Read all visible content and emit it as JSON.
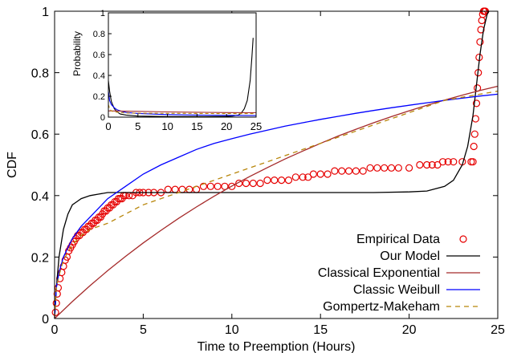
{
  "chart_data": [
    {
      "type": "line",
      "xlabel": "Time to Preemption (Hours)",
      "ylabel": "CDF",
      "xlim": [
        0,
        25
      ],
      "ylim": [
        0,
        1
      ],
      "xticks": [
        "0",
        "5",
        "10",
        "15",
        "20",
        "25"
      ],
      "yticks": [
        "0",
        "0.2",
        "0.4",
        "0.6",
        "0.8",
        "1"
      ],
      "legend_position": "bottom-right",
      "grid": false,
      "series": [
        {
          "name": "Empirical Data",
          "style": "scatter",
          "marker": "open-circle",
          "color": "#e60000",
          "x": [
            0.05,
            0.1,
            0.15,
            0.2,
            0.3,
            0.4,
            0.5,
            0.6,
            0.7,
            0.8,
            0.9,
            1.0,
            1.1,
            1.2,
            1.3,
            1.4,
            1.5,
            1.6,
            1.7,
            1.8,
            1.9,
            2.0,
            2.1,
            2.2,
            2.3,
            2.4,
            2.5,
            2.6,
            2.7,
            2.8,
            2.9,
            3.0,
            3.1,
            3.2,
            3.3,
            3.4,
            3.5,
            3.6,
            3.7,
            3.8,
            3.9,
            4.0,
            4.2,
            4.4,
            4.6,
            4.8,
            5.0,
            5.3,
            5.6,
            6.0,
            6.4,
            6.8,
            7.2,
            7.6,
            8.0,
            8.4,
            8.8,
            9.2,
            9.6,
            10.0,
            10.4,
            10.8,
            11.2,
            11.6,
            12.0,
            12.4,
            12.8,
            13.2,
            13.6,
            14.0,
            14.3,
            14.6,
            15.0,
            15.4,
            15.8,
            16.2,
            16.6,
            17.0,
            17.4,
            17.8,
            18.2,
            18.6,
            19.0,
            19.4,
            20.0,
            20.6,
            21.0,
            21.3,
            21.6,
            21.9,
            22.2,
            22.5,
            23.0,
            23.5,
            23.6,
            23.65,
            23.7,
            23.75,
            23.8,
            23.85,
            23.9,
            23.95,
            24.0,
            24.05,
            24.1,
            24.15,
            24.2,
            24.25,
            24.3
          ],
          "y": [
            0.02,
            0.05,
            0.08,
            0.1,
            0.13,
            0.15,
            0.17,
            0.19,
            0.2,
            0.22,
            0.23,
            0.24,
            0.25,
            0.26,
            0.27,
            0.27,
            0.28,
            0.28,
            0.29,
            0.29,
            0.3,
            0.3,
            0.31,
            0.31,
            0.32,
            0.32,
            0.33,
            0.33,
            0.34,
            0.35,
            0.35,
            0.36,
            0.36,
            0.37,
            0.37,
            0.38,
            0.38,
            0.39,
            0.39,
            0.39,
            0.4,
            0.4,
            0.4,
            0.4,
            0.41,
            0.41,
            0.41,
            0.41,
            0.41,
            0.41,
            0.42,
            0.42,
            0.42,
            0.42,
            0.42,
            0.43,
            0.43,
            0.43,
            0.43,
            0.43,
            0.44,
            0.44,
            0.44,
            0.44,
            0.45,
            0.45,
            0.45,
            0.45,
            0.46,
            0.46,
            0.46,
            0.47,
            0.47,
            0.47,
            0.48,
            0.48,
            0.48,
            0.48,
            0.48,
            0.49,
            0.49,
            0.49,
            0.49,
            0.49,
            0.49,
            0.5,
            0.5,
            0.5,
            0.5,
            0.51,
            0.51,
            0.51,
            0.51,
            0.51,
            0.51,
            0.56,
            0.6,
            0.65,
            0.7,
            0.75,
            0.8,
            0.85,
            0.9,
            0.94,
            0.97,
            0.99,
            1.0,
            1.0,
            1.0
          ]
        },
        {
          "name": "Our Model",
          "color": "#000000",
          "dash": "solid",
          "x": [
            0,
            0.1,
            0.25,
            0.5,
            0.75,
            1.0,
            1.25,
            1.5,
            2.0,
            2.5,
            3.0,
            3.5,
            4.0,
            5.0,
            6.0,
            8.0,
            10.0,
            12.0,
            15.0,
            18.0,
            20.0,
            21.0,
            22.0,
            22.5,
            23.0,
            23.3,
            23.6,
            23.8,
            24.0,
            24.2,
            24.4,
            24.5
          ],
          "y": [
            0,
            0.1,
            0.2,
            0.29,
            0.34,
            0.37,
            0.38,
            0.39,
            0.4,
            0.405,
            0.41,
            0.41,
            0.41,
            0.41,
            0.41,
            0.41,
            0.41,
            0.41,
            0.41,
            0.41,
            0.412,
            0.415,
            0.43,
            0.45,
            0.5,
            0.56,
            0.66,
            0.76,
            0.86,
            0.94,
            0.99,
            1.0
          ]
        },
        {
          "name": "Classical Exponential",
          "color": "#a52a2a",
          "dash": "solid",
          "x": [
            0,
            1,
            2,
            3,
            4,
            5,
            6,
            7,
            8,
            9,
            10,
            11,
            12,
            13,
            14,
            15,
            16,
            17,
            18,
            19,
            20,
            21,
            22,
            23,
            24,
            25
          ],
          "y": [
            0,
            0.055,
            0.107,
            0.156,
            0.202,
            0.246,
            0.287,
            0.326,
            0.363,
            0.398,
            0.431,
            0.462,
            0.491,
            0.519,
            0.545,
            0.57,
            0.594,
            0.616,
            0.637,
            0.657,
            0.676,
            0.694,
            0.711,
            0.727,
            0.742,
            0.756
          ]
        },
        {
          "name": "Classic Weibull",
          "color": "#0000ff",
          "dash": "solid",
          "x": [
            0,
            0.1,
            0.25,
            0.5,
            1,
            1.5,
            2,
            3,
            4,
            5,
            6,
            7,
            8,
            9,
            10,
            11,
            12,
            13,
            14,
            15,
            16,
            17,
            18,
            19,
            20,
            21,
            22,
            23,
            24,
            25
          ],
          "y": [
            0,
            0.1,
            0.15,
            0.2,
            0.26,
            0.3,
            0.33,
            0.39,
            0.43,
            0.47,
            0.5,
            0.525,
            0.55,
            0.57,
            0.585,
            0.6,
            0.613,
            0.626,
            0.637,
            0.648,
            0.658,
            0.668,
            0.677,
            0.686,
            0.694,
            0.702,
            0.71,
            0.717,
            0.724,
            0.73
          ]
        },
        {
          "name": "Gompertz-Makeham",
          "color": "#b8860b",
          "dash": "dashed",
          "x": [
            0,
            0.1,
            0.25,
            0.5,
            1,
            1.5,
            2,
            3,
            4,
            5,
            6,
            7,
            8,
            9,
            10,
            11,
            12,
            13,
            14,
            15,
            16,
            17,
            18,
            19,
            20,
            21,
            22,
            23,
            24,
            25
          ],
          "y": [
            0,
            0.1,
            0.14,
            0.19,
            0.24,
            0.27,
            0.29,
            0.31,
            0.34,
            0.37,
            0.39,
            0.41,
            0.43,
            0.45,
            0.47,
            0.49,
            0.51,
            0.53,
            0.55,
            0.57,
            0.59,
            0.61,
            0.63,
            0.65,
            0.67,
            0.69,
            0.71,
            0.72,
            0.73,
            0.74
          ]
        }
      ]
    },
    {
      "type": "line",
      "ylabel": "Probability",
      "xlim": [
        0,
        25
      ],
      "ylim": [
        0,
        1
      ],
      "xticks": [
        "0",
        "5",
        "10",
        "15",
        "20",
        "25"
      ],
      "yticks": [
        "0",
        "0.2",
        "0.4",
        "0.6",
        "0.8",
        "1"
      ],
      "series": [
        {
          "color": "#000000",
          "x": [
            0,
            0.2,
            0.5,
            1,
            1.5,
            2,
            3,
            5,
            10,
            15,
            20,
            21,
            22,
            22.5,
            23,
            23.5,
            24,
            24.3,
            24.5
          ],
          "y": [
            0.35,
            0.25,
            0.15,
            0.08,
            0.05,
            0.03,
            0.02,
            0.01,
            0.005,
            0.005,
            0.007,
            0.01,
            0.02,
            0.04,
            0.08,
            0.16,
            0.35,
            0.58,
            0.76
          ]
        },
        {
          "color": "#0000ff",
          "x": [
            0,
            0.2,
            0.5,
            1,
            1.5,
            2,
            3,
            5,
            10,
            15,
            20,
            25
          ],
          "y": [
            0.25,
            0.16,
            0.12,
            0.09,
            0.07,
            0.06,
            0.045,
            0.035,
            0.025,
            0.02,
            0.017,
            0.015
          ]
        },
        {
          "color": "#a52a2a",
          "x": [
            0,
            5,
            10,
            15,
            20,
            25
          ],
          "y": [
            0.06,
            0.055,
            0.05,
            0.047,
            0.044,
            0.042
          ]
        },
        {
          "color": "#b8860b",
          "dash": "dashed",
          "x": [
            0,
            0.2,
            0.5,
            1,
            2,
            3,
            5,
            10,
            15,
            20,
            25
          ],
          "y": [
            0.12,
            0.08,
            0.06,
            0.05,
            0.045,
            0.04,
            0.038,
            0.036,
            0.035,
            0.034,
            0.034
          ]
        }
      ]
    }
  ]
}
